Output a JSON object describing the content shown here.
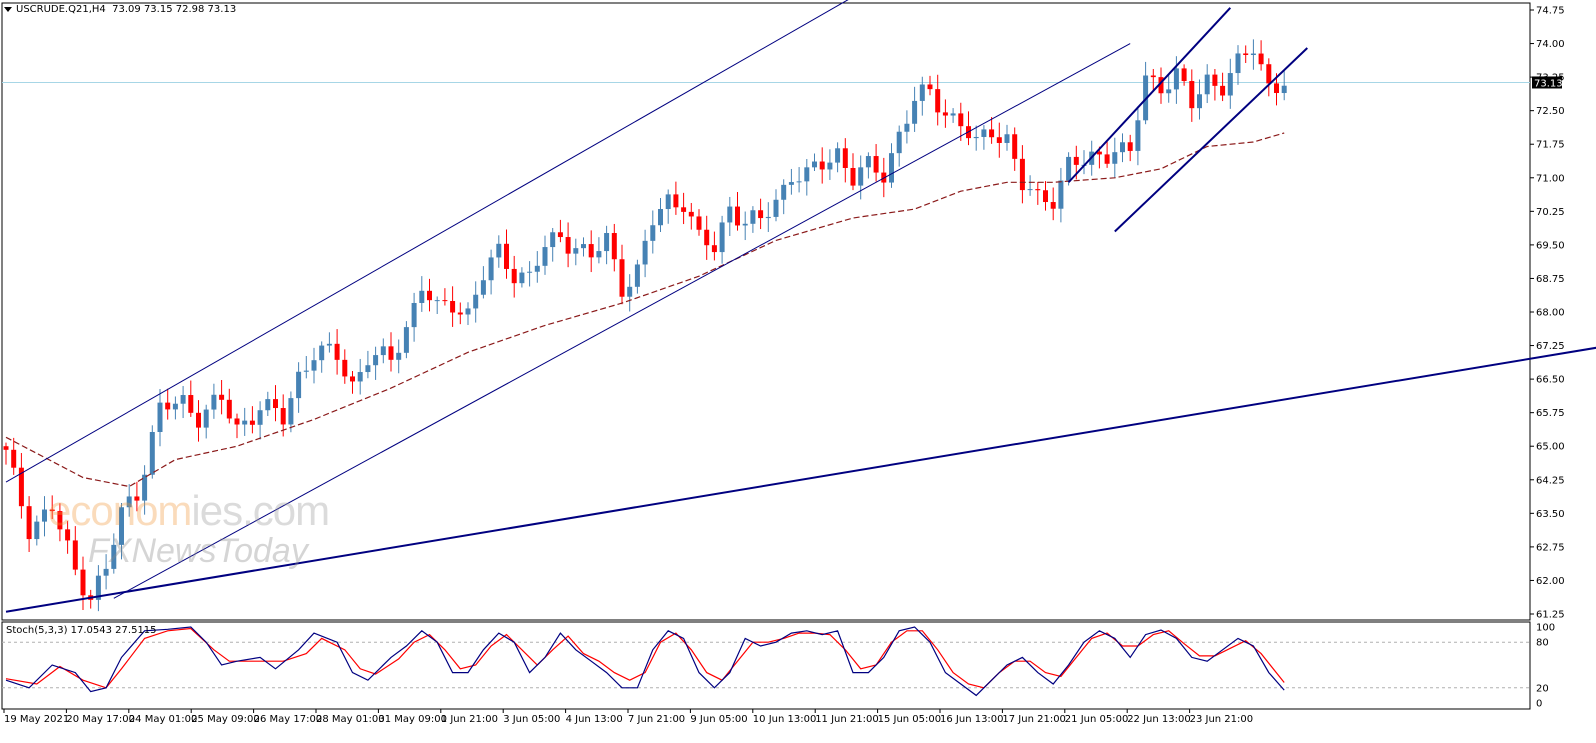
{
  "header": {
    "symbol": "USCRUDE.Q21,H4",
    "ohlc": "73.09 73.15 72.98 73.13"
  },
  "oscillator": {
    "label": "Stoch(5,3,3) 17.0543 27.5115",
    "levels": [
      "100",
      "80",
      "20",
      "0"
    ]
  },
  "watermark": {
    "line1_a": "econom",
    "line1_b": "ies.com",
    "line2": "FXNewsToday"
  },
  "chart_data": {
    "type": "candlestick",
    "price_axis": {
      "min": 61.25,
      "max": 74.75,
      "ticks": [
        "74.75",
        "74.00",
        "73.25",
        "72.50",
        "71.75",
        "71.00",
        "70.25",
        "69.50",
        "68.75",
        "68.00",
        "67.25",
        "66.50",
        "65.75",
        "65.00",
        "64.25",
        "63.50",
        "62.75",
        "62.00",
        "61.25"
      ]
    },
    "current_price": "73.13",
    "time_axis": [
      "19 May 2021",
      "20 May 17:00",
      "24 May 01:00",
      "25 May 09:00",
      "26 May 17:00",
      "28 May 01:00",
      "31 May 09:00",
      "1 Jun 21:00",
      "3 Jun 05:00",
      "4 Jun 13:00",
      "7 Jun 21:00",
      "9 Jun 05:00",
      "10 Jun 13:00",
      "11 Jun 21:00",
      "15 Jun 05:00",
      "16 Jun 13:00",
      "17 Jun 21:00",
      "21 Jun 05:00",
      "22 Jun 13:00",
      "23 Jun 21:00"
    ],
    "close_path": [
      [
        0,
        64.8
      ],
      [
        3,
        63.2
      ],
      [
        6,
        63.6
      ],
      [
        9,
        62.2
      ],
      [
        11,
        61.7
      ],
      [
        13,
        62.2
      ],
      [
        15,
        63.5
      ],
      [
        17,
        64.0
      ],
      [
        20,
        65.8
      ],
      [
        23,
        66.0
      ],
      [
        25,
        65.7
      ],
      [
        28,
        66.0
      ],
      [
        30,
        65.4
      ],
      [
        33,
        65.9
      ],
      [
        36,
        65.6
      ],
      [
        38,
        66.6
      ],
      [
        40,
        67.1
      ],
      [
        43,
        67.0
      ],
      [
        45,
        66.4
      ],
      [
        47,
        67.0
      ],
      [
        50,
        66.9
      ],
      [
        52,
        67.7
      ],
      [
        54,
        68.6
      ],
      [
        56,
        68.0
      ],
      [
        58,
        68.2
      ],
      [
        60,
        68.0
      ],
      [
        62,
        68.8
      ],
      [
        64,
        69.3
      ],
      [
        66,
        68.9
      ],
      [
        68,
        68.8
      ],
      [
        70,
        69.4
      ],
      [
        72,
        69.7
      ],
      [
        74,
        69.5
      ],
      [
        76,
        69.2
      ],
      [
        78,
        69.6
      ],
      [
        80,
        68.6
      ],
      [
        82,
        68.9
      ],
      [
        84,
        70.0
      ],
      [
        86,
        70.5
      ],
      [
        88,
        70.5
      ],
      [
        90,
        69.6
      ],
      [
        92,
        69.4
      ],
      [
        94,
        70.4
      ],
      [
        96,
        70.0
      ],
      [
        98,
        70.0
      ],
      [
        100,
        70.5
      ],
      [
        102,
        71.1
      ],
      [
        104,
        71.0
      ],
      [
        106,
        71.3
      ],
      [
        108,
        71.6
      ],
      [
        110,
        71.0
      ],
      [
        112,
        71.2
      ],
      [
        114,
        71.1
      ],
      [
        116,
        72.0
      ],
      [
        118,
        72.7
      ],
      [
        120,
        72.9
      ],
      [
        122,
        72.5
      ],
      [
        124,
        72.2
      ],
      [
        126,
        71.7
      ],
      [
        128,
        72.1
      ],
      [
        130,
        71.9
      ],
      [
        132,
        70.8
      ],
      [
        134,
        70.5
      ],
      [
        136,
        70.6
      ],
      [
        138,
        71.3
      ],
      [
        140,
        71.3
      ],
      [
        142,
        71.5
      ],
      [
        144,
        71.7
      ],
      [
        146,
        71.5
      ],
      [
        148,
        73.2
      ],
      [
        150,
        73.1
      ],
      [
        152,
        73.3
      ],
      [
        154,
        72.6
      ],
      [
        156,
        73.2
      ],
      [
        158,
        73.1
      ],
      [
        160,
        73.5
      ],
      [
        162,
        73.9
      ],
      [
        164,
        73.1
      ],
      [
        166,
        73.13
      ]
    ],
    "moving_average": [
      [
        0,
        65.2
      ],
      [
        10,
        64.3
      ],
      [
        16,
        64.1
      ],
      [
        22,
        64.7
      ],
      [
        30,
        65.0
      ],
      [
        40,
        65.6
      ],
      [
        50,
        66.3
      ],
      [
        60,
        67.1
      ],
      [
        70,
        67.7
      ],
      [
        80,
        68.2
      ],
      [
        90,
        68.8
      ],
      [
        100,
        69.6
      ],
      [
        110,
        70.1
      ],
      [
        118,
        70.3
      ],
      [
        124,
        70.7
      ],
      [
        130,
        70.9
      ],
      [
        136,
        70.9
      ],
      [
        144,
        71.0
      ],
      [
        150,
        71.2
      ],
      [
        156,
        71.7
      ],
      [
        162,
        71.8
      ],
      [
        166,
        72.0
      ]
    ],
    "oscillator_series": {
      "main": [
        [
          0,
          30
        ],
        [
          3,
          20
        ],
        [
          6,
          50
        ],
        [
          9,
          40
        ],
        [
          11,
          15
        ],
        [
          13,
          20
        ],
        [
          15,
          60
        ],
        [
          18,
          95
        ],
        [
          21,
          97
        ],
        [
          24,
          100
        ],
        [
          26,
          80
        ],
        [
          28,
          50
        ],
        [
          30,
          55
        ],
        [
          33,
          60
        ],
        [
          35,
          45
        ],
        [
          38,
          70
        ],
        [
          40,
          92
        ],
        [
          43,
          80
        ],
        [
          45,
          40
        ],
        [
          47,
          30
        ],
        [
          50,
          60
        ],
        [
          52,
          75
        ],
        [
          54,
          95
        ],
        [
          56,
          80
        ],
        [
          58,
          40
        ],
        [
          60,
          40
        ],
        [
          62,
          70
        ],
        [
          64,
          92
        ],
        [
          66,
          80
        ],
        [
          68,
          40
        ],
        [
          70,
          60
        ],
        [
          72,
          92
        ],
        [
          74,
          70
        ],
        [
          76,
          55
        ],
        [
          78,
          40
        ],
        [
          80,
          20
        ],
        [
          82,
          20
        ],
        [
          84,
          70
        ],
        [
          86,
          95
        ],
        [
          88,
          85
        ],
        [
          90,
          40
        ],
        [
          92,
          20
        ],
        [
          94,
          40
        ],
        [
          96,
          85
        ],
        [
          98,
          75
        ],
        [
          100,
          80
        ],
        [
          102,
          92
        ],
        [
          104,
          95
        ],
        [
          106,
          90
        ],
        [
          108,
          95
        ],
        [
          110,
          40
        ],
        [
          112,
          40
        ],
        [
          114,
          60
        ],
        [
          116,
          95
        ],
        [
          118,
          100
        ],
        [
          120,
          80
        ],
        [
          122,
          40
        ],
        [
          124,
          25
        ],
        [
          126,
          10
        ],
        [
          128,
          30
        ],
        [
          130,
          50
        ],
        [
          132,
          60
        ],
        [
          134,
          40
        ],
        [
          136,
          25
        ],
        [
          138,
          50
        ],
        [
          140,
          80
        ],
        [
          142,
          95
        ],
        [
          144,
          85
        ],
        [
          146,
          60
        ],
        [
          148,
          90
        ],
        [
          150,
          96
        ],
        [
          152,
          85
        ],
        [
          154,
          60
        ],
        [
          156,
          55
        ],
        [
          158,
          70
        ],
        [
          160,
          85
        ],
        [
          162,
          75
        ],
        [
          164,
          40
        ],
        [
          166,
          17
        ]
      ],
      "signal": [
        [
          0,
          32
        ],
        [
          4,
          25
        ],
        [
          7,
          48
        ],
        [
          10,
          30
        ],
        [
          13,
          20
        ],
        [
          15,
          45
        ],
        [
          18,
          85
        ],
        [
          21,
          95
        ],
        [
          24,
          98
        ],
        [
          27,
          70
        ],
        [
          29,
          55
        ],
        [
          31,
          55
        ],
        [
          34,
          55
        ],
        [
          36,
          55
        ],
        [
          39,
          65
        ],
        [
          41,
          85
        ],
        [
          44,
          70
        ],
        [
          46,
          45
        ],
        [
          48,
          38
        ],
        [
          51,
          58
        ],
        [
          53,
          80
        ],
        [
          55,
          90
        ],
        [
          57,
          70
        ],
        [
          59,
          45
        ],
        [
          61,
          50
        ],
        [
          63,
          75
        ],
        [
          65,
          90
        ],
        [
          67,
          70
        ],
        [
          69,
          50
        ],
        [
          71,
          70
        ],
        [
          73,
          88
        ],
        [
          75,
          65
        ],
        [
          77,
          55
        ],
        [
          79,
          40
        ],
        [
          81,
          30
        ],
        [
          83,
          40
        ],
        [
          85,
          80
        ],
        [
          87,
          92
        ],
        [
          89,
          70
        ],
        [
          91,
          40
        ],
        [
          93,
          30
        ],
        [
          95,
          55
        ],
        [
          97,
          80
        ],
        [
          99,
          80
        ],
        [
          101,
          85
        ],
        [
          103,
          92
        ],
        [
          105,
          92
        ],
        [
          107,
          90
        ],
        [
          109,
          70
        ],
        [
          111,
          45
        ],
        [
          113,
          50
        ],
        [
          115,
          80
        ],
        [
          117,
          95
        ],
        [
          119,
          95
        ],
        [
          121,
          70
        ],
        [
          123,
          40
        ],
        [
          125,
          25
        ],
        [
          127,
          20
        ],
        [
          129,
          40
        ],
        [
          131,
          55
        ],
        [
          133,
          55
        ],
        [
          135,
          40
        ],
        [
          137,
          35
        ],
        [
          139,
          60
        ],
        [
          141,
          85
        ],
        [
          143,
          92
        ],
        [
          145,
          75
        ],
        [
          147,
          75
        ],
        [
          149,
          90
        ],
        [
          151,
          95
        ],
        [
          153,
          78
        ],
        [
          155,
          62
        ],
        [
          157,
          62
        ],
        [
          159,
          72
        ],
        [
          161,
          82
        ],
        [
          163,
          65
        ],
        [
          166,
          27
        ]
      ]
    },
    "trendlines": [
      {
        "name": "upper-channel",
        "from": [
          0,
          64.2
        ],
        "to": [
          140,
          78.0
        ]
      },
      {
        "name": "lower-channel",
        "from": [
          14,
          61.6
        ],
        "to": [
          146,
          74.0
        ]
      },
      {
        "name": "long-term-support",
        "from": [
          0,
          61.3
        ],
        "to": [
          231,
          67.9
        ]
      },
      {
        "name": "short-channel-upper",
        "from": [
          138,
          70.9
        ],
        "to": [
          159,
          74.8
        ]
      },
      {
        "name": "short-channel-lower",
        "from": [
          144,
          69.8
        ],
        "to": [
          169,
          73.9
        ]
      }
    ]
  }
}
